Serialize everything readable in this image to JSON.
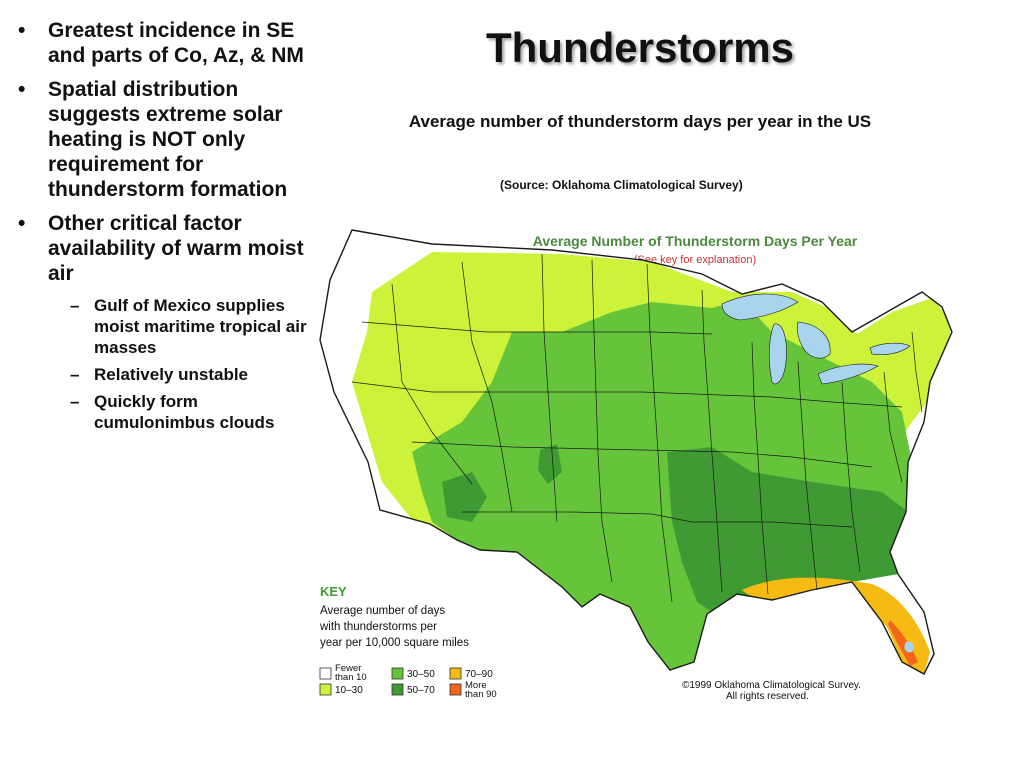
{
  "slide": {
    "title": "Thunderstorms",
    "subtitle": "Average number of thunderstorm days per year in the US",
    "source": "(Source: Oklahoma Climatological Survey)"
  },
  "bullets": [
    {
      "text": "Greatest incidence in SE and parts of Co, Az, & NM",
      "sub": []
    },
    {
      "text": "Spatial distribution suggests extreme solar heating is NOT only requirement for thunderstorm formation",
      "sub": []
    },
    {
      "text": "Other critical factor availability of warm moist air",
      "sub": [
        "Gulf of Mexico supplies moist maritime tropical air masses",
        "Relatively unstable",
        "Quickly form cumulonimbus clouds"
      ]
    }
  ],
  "map": {
    "title": "Average Number of Thunderstorm Days Per Year",
    "subtitle": "(See key for explanation)",
    "key_title": "KEY",
    "key_description": [
      "Average number of days",
      "with thunderstorms per",
      "year per 10,000 square miles"
    ],
    "legend": [
      {
        "label": [
          "Fewer",
          "than 10"
        ],
        "color": "#ffffff"
      },
      {
        "label": [
          "10–30"
        ],
        "color": "#ccf23a"
      },
      {
        "label": [
          "30–50"
        ],
        "color": "#66c43a"
      },
      {
        "label": [
          "50–70"
        ],
        "color": "#3f9a33"
      },
      {
        "label": [
          "70–90"
        ],
        "color": "#f6bb13"
      },
      {
        "label": [
          "More",
          "than 90"
        ],
        "color": "#f2651a"
      }
    ],
    "copyright": [
      "©1999 Oklahoma Climatological Survey.",
      "All rights reserved."
    ],
    "colors": {
      "lakes": "#a8d4ee",
      "outline": "#1a1a1a",
      "map_title": "#4a8a3c",
      "map_subtitle": "#cc3333"
    }
  }
}
